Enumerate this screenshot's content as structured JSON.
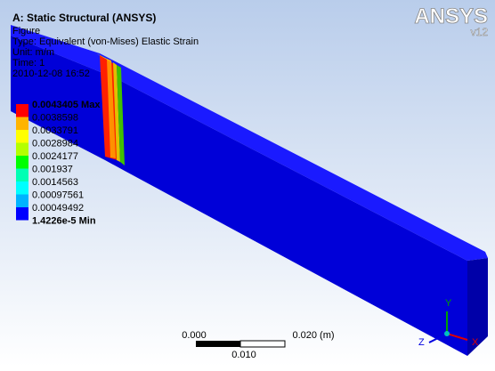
{
  "header": {
    "title": "A: Static Structural (ANSYS)",
    "lines": [
      "Figure",
      "Type: Equivalent (von-Mises) Elastic Strain",
      "Unit: m/m",
      "Time: 1",
      "2010-12-08 16:52"
    ]
  },
  "logo": {
    "name": "ANSYS",
    "version": "v12"
  },
  "legend": {
    "labels": [
      "0.0043405 Max",
      "0.0038598",
      "0.0033791",
      "0.0028984",
      "0.0024177",
      "0.001937",
      "0.0014563",
      "0.00097561",
      "0.00049492",
      "1.4226e-5 Min"
    ]
  },
  "scale_bar": {
    "left": "0.000",
    "right": "0.020 (m)",
    "middle": "0.010"
  },
  "triad": {
    "y": "Y",
    "x": "X",
    "z": "Z"
  }
}
